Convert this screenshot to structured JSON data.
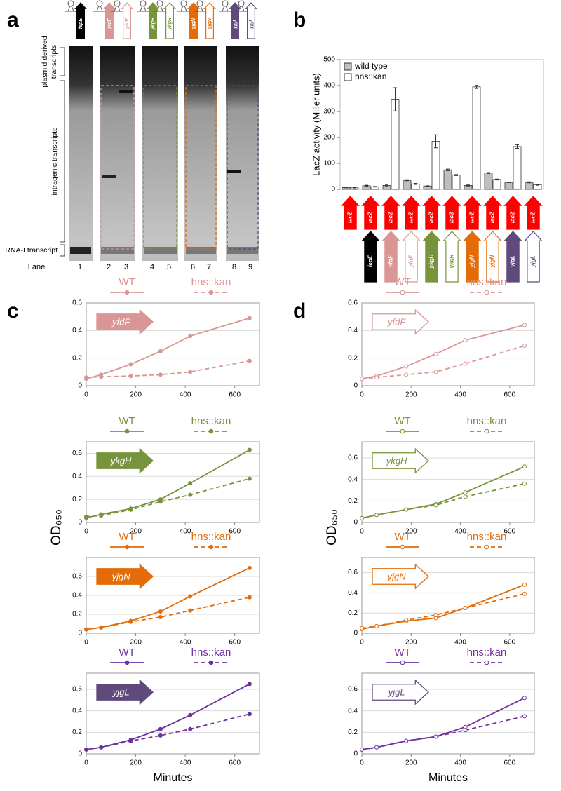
{
  "panel_labels": [
    "a",
    "b",
    "c",
    "d"
  ],
  "gel": {
    "lane_genes": [
      "fepE",
      "yfdF",
      "yfdF",
      "ykgH",
      "ykgH",
      "yjgN",
      "yjgN",
      "yjgL",
      "yjgL"
    ],
    "lane_colors": [
      "#000000",
      "#d99694",
      "#d99694",
      "#77933c",
      "#77933c",
      "#e36c09",
      "#e36c09",
      "#604a7b",
      "#604a7b"
    ],
    "lane_filled": [
      true,
      true,
      false,
      true,
      false,
      true,
      false,
      true,
      false
    ],
    "plasmid_label": [
      "plasmid derived",
      "transcripts"
    ],
    "intragenic_label": "intragenic transcripts",
    "rna_label": "RNA-I transcript",
    "lane_title": "Lane",
    "lanes": [
      1,
      2,
      3,
      4,
      5,
      6,
      7,
      8,
      9
    ]
  },
  "chart_data": [
    {
      "type": "bar",
      "ylabel": "LacZ activity (Miller units)",
      "categories": [
        null,
        "fepE",
        "yfdF",
        "yfdF",
        "ykgH",
        "ykgH",
        "yjgN",
        "yjgN",
        "yjgL",
        "yjgL"
      ],
      "category_colors": [
        "#000000",
        "#000000",
        "#d99694",
        "#d99694",
        "#77933c",
        "#77933c",
        "#e36c09",
        "#e36c09",
        "#604a7b",
        "#604a7b"
      ],
      "category_filled": [
        true,
        true,
        true,
        false,
        true,
        false,
        true,
        false,
        true,
        false
      ],
      "reporter_labels": [
        "lacZ",
        "lacZ",
        "lacZ",
        "lacZ",
        "lacZ",
        "lacZ",
        "lacZ",
        "lacZ",
        "lacZ",
        "lacZ"
      ],
      "reporter_color": "#ff0000",
      "series": [
        {
          "name": "wild type",
          "color": "#bfbfbf",
          "values": [
            7,
            14,
            15,
            35,
            13,
            75,
            15,
            63,
            27,
            27
          ],
          "errors": [
            1,
            2,
            2,
            2,
            1,
            3,
            2,
            2,
            1,
            2
          ]
        },
        {
          "name": "hns::kan",
          "color": "#ffffff",
          "values": [
            6,
            10,
            347,
            21,
            185,
            55,
            395,
            38,
            165,
            18
          ],
          "errors": [
            1,
            1,
            45,
            2,
            25,
            2,
            6,
            2,
            7,
            2
          ]
        }
      ],
      "ylim": [
        0,
        500
      ],
      "yticks": [
        0,
        100,
        200,
        300,
        400,
        500
      ],
      "legend": "upper left"
    },
    {
      "type": "line",
      "gene": "yfdF",
      "gene_color": "#d99694",
      "gene_filled": true,
      "x": [
        0,
        60,
        180,
        300,
        420,
        660
      ],
      "xlim": [
        0,
        700
      ],
      "xticks": [
        0,
        200,
        400,
        600
      ],
      "ylim": [
        0,
        0.6
      ],
      "yticks": [
        0,
        0.2,
        0.4,
        0.6
      ],
      "grid": true,
      "series": [
        {
          "name": "WT",
          "color": "#d99694",
          "linestyle": "solid",
          "marker_filled": true,
          "values": [
            0.05,
            0.08,
            0.155,
            0.25,
            0.36,
            0.49
          ]
        },
        {
          "name": "hns::kan",
          "color": "#d99694",
          "linestyle": "dashed",
          "marker_filled": true,
          "values": [
            0.06,
            0.065,
            0.07,
            0.08,
            0.1,
            0.18
          ]
        }
      ]
    },
    {
      "type": "line",
      "gene": "ykgH",
      "gene_color": "#77933c",
      "gene_filled": true,
      "ylabel": "OD₆₅₀",
      "x": [
        0,
        60,
        180,
        300,
        420,
        660
      ],
      "xlim": [
        0,
        700
      ],
      "xticks": [
        0,
        200,
        400,
        600
      ],
      "ylim": [
        0,
        0.7
      ],
      "yticks": [
        0,
        0.2,
        0.4,
        0.6
      ],
      "grid": true,
      "series": [
        {
          "name": "WT",
          "color": "#77933c",
          "linestyle": "solid",
          "marker_filled": true,
          "values": [
            0.04,
            0.07,
            0.12,
            0.2,
            0.34,
            0.63
          ]
        },
        {
          "name": "hns::kan",
          "color": "#77933c",
          "linestyle": "dashed",
          "marker_filled": true,
          "values": [
            0.05,
            0.06,
            0.11,
            0.18,
            0.24,
            0.38
          ]
        }
      ]
    },
    {
      "type": "line",
      "gene": "yjgN",
      "gene_color": "#e36c09",
      "gene_filled": true,
      "x": [
        0,
        60,
        180,
        300,
        420,
        660
      ],
      "xlim": [
        0,
        700
      ],
      "xticks": [
        0,
        200,
        400,
        600
      ],
      "ylim": [
        0,
        0.8
      ],
      "yticks": [
        0,
        0.2,
        0.4,
        0.6
      ],
      "grid": true,
      "series": [
        {
          "name": "WT",
          "color": "#e36c09",
          "linestyle": "solid",
          "marker_filled": true,
          "values": [
            0.04,
            0.06,
            0.13,
            0.23,
            0.39,
            0.69
          ]
        },
        {
          "name": "hns::kan",
          "color": "#e36c09",
          "linestyle": "dashed",
          "marker_filled": true,
          "values": [
            0.04,
            0.06,
            0.12,
            0.17,
            0.24,
            0.38
          ]
        }
      ]
    },
    {
      "type": "line",
      "gene": "yjgL",
      "gene_color": "#604a7b",
      "gene_filled": true,
      "xlabel": "Minutes",
      "x": [
        0,
        60,
        180,
        300,
        420,
        660
      ],
      "xlim": [
        0,
        700
      ],
      "xticks": [
        0,
        200,
        400,
        600
      ],
      "ylim": [
        0,
        0.75
      ],
      "yticks": [
        0,
        0.2,
        0.4,
        0.6
      ],
      "grid": true,
      "series": [
        {
          "name": "WT",
          "color": "#7030a0",
          "linestyle": "solid",
          "marker_filled": true,
          "values": [
            0.04,
            0.06,
            0.13,
            0.23,
            0.36,
            0.65
          ]
        },
        {
          "name": "hns::kan",
          "color": "#7030a0",
          "linestyle": "dashed",
          "marker_filled": true,
          "values": [
            0.04,
            0.06,
            0.12,
            0.17,
            0.23,
            0.37
          ]
        }
      ]
    },
    {
      "type": "line",
      "gene": "yfdF",
      "gene_color": "#d99694",
      "gene_filled": false,
      "x": [
        0,
        60,
        180,
        300,
        420,
        660
      ],
      "xlim": [
        0,
        700
      ],
      "xticks": [
        0,
        200,
        400,
        600
      ],
      "ylim": [
        0,
        0.6
      ],
      "yticks": [
        0,
        0.2,
        0.4,
        0.6
      ],
      "grid": true,
      "series": [
        {
          "name": "WT",
          "color": "#d99694",
          "linestyle": "solid",
          "marker_filled": false,
          "values": [
            0.05,
            0.07,
            0.14,
            0.23,
            0.33,
            0.44
          ]
        },
        {
          "name": "hns::kan",
          "color": "#d99694",
          "linestyle": "dashed",
          "marker_filled": false,
          "values": [
            0.05,
            0.06,
            0.08,
            0.1,
            0.16,
            0.29
          ]
        }
      ]
    },
    {
      "type": "line",
      "gene": "ykgH",
      "gene_color": "#77933c",
      "gene_filled": false,
      "ylabel": "OD₆₅₀",
      "x": [
        0,
        60,
        180,
        300,
        420,
        660
      ],
      "xlim": [
        0,
        700
      ],
      "xticks": [
        0,
        200,
        400,
        600
      ],
      "ylim": [
        0,
        0.75
      ],
      "yticks": [
        0,
        0.2,
        0.4,
        0.6
      ],
      "grid": true,
      "series": [
        {
          "name": "WT",
          "color": "#77933c",
          "linestyle": "solid",
          "marker_filled": false,
          "values": [
            0.04,
            0.07,
            0.12,
            0.17,
            0.28,
            0.52
          ]
        },
        {
          "name": "hns::kan",
          "color": "#77933c",
          "linestyle": "dashed",
          "marker_filled": false,
          "values": [
            0.04,
            0.07,
            0.12,
            0.16,
            0.24,
            0.36
          ]
        }
      ]
    },
    {
      "type": "line",
      "gene": "yjgN",
      "gene_color": "#e36c09",
      "gene_filled": false,
      "x": [
        0,
        60,
        180,
        300,
        420,
        660
      ],
      "xlim": [
        0,
        700
      ],
      "xticks": [
        0,
        200,
        400,
        600
      ],
      "ylim": [
        0,
        0.75
      ],
      "yticks": [
        0,
        0.2,
        0.4,
        0.6
      ],
      "grid": true,
      "series": [
        {
          "name": "WT",
          "color": "#e36c09",
          "linestyle": "solid",
          "marker_filled": false,
          "values": [
            0.04,
            0.07,
            0.12,
            0.15,
            0.25,
            0.48
          ]
        },
        {
          "name": "hns::kan",
          "color": "#e36c09",
          "linestyle": "dashed",
          "marker_filled": false,
          "values": [
            0.05,
            0.07,
            0.13,
            0.18,
            0.25,
            0.39
          ]
        }
      ]
    },
    {
      "type": "line",
      "gene": "yjgL",
      "gene_color": "#604a7b",
      "gene_filled": false,
      "xlabel": "Minutes",
      "x": [
        0,
        60,
        180,
        300,
        420,
        660
      ],
      "xlim": [
        0,
        700
      ],
      "xticks": [
        0,
        200,
        400,
        600
      ],
      "ylim": [
        0,
        0.75
      ],
      "yticks": [
        0,
        0.2,
        0.4,
        0.6
      ],
      "grid": true,
      "series": [
        {
          "name": "WT",
          "color": "#7030a0",
          "linestyle": "solid",
          "marker_filled": false,
          "values": [
            0.04,
            0.06,
            0.12,
            0.16,
            0.25,
            0.52
          ]
        },
        {
          "name": "hns::kan",
          "color": "#7030a0",
          "linestyle": "dashed",
          "marker_filled": false,
          "values": [
            0.04,
            0.06,
            0.12,
            0.16,
            0.22,
            0.35
          ]
        }
      ]
    }
  ]
}
